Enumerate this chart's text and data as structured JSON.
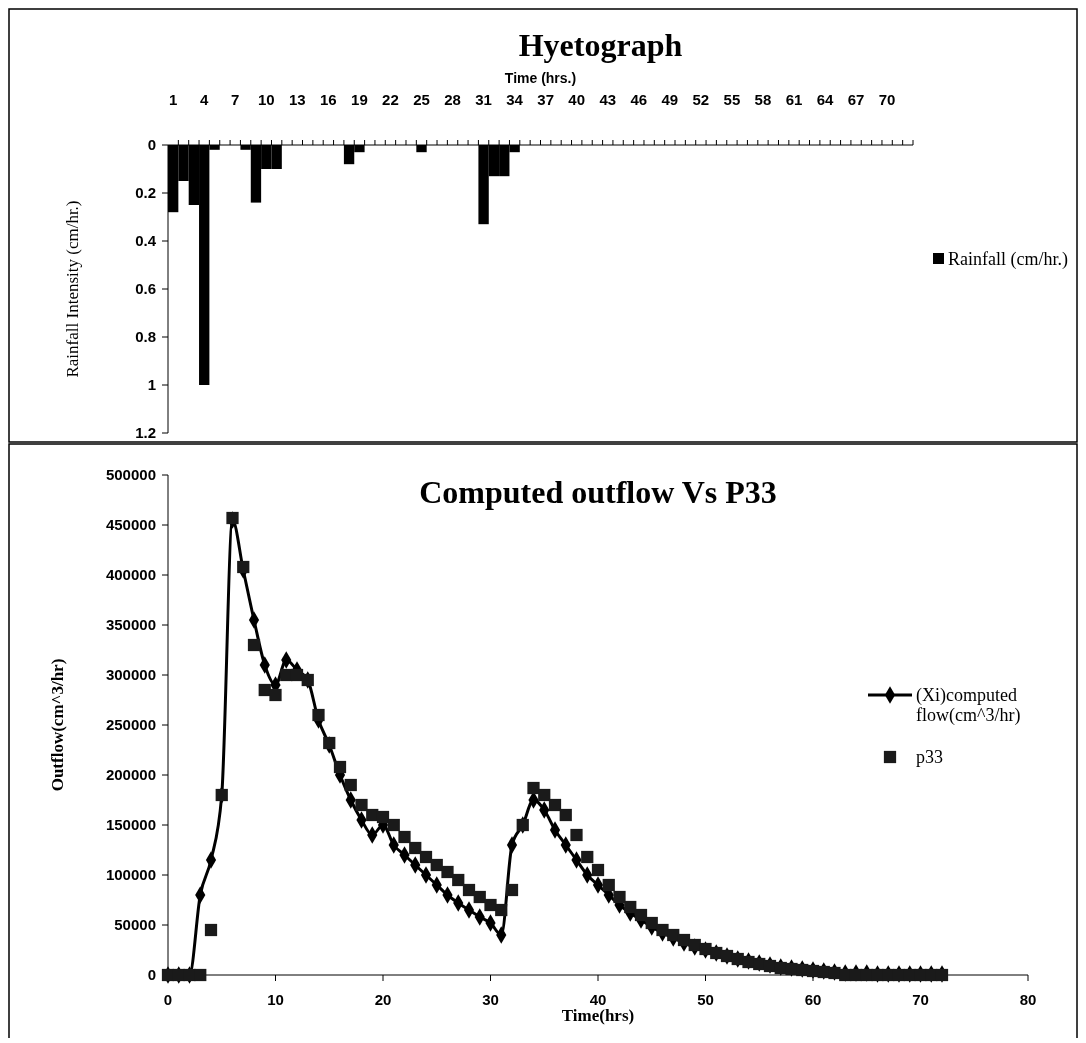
{
  "chart_data": [
    {
      "type": "bar",
      "title": "Hyetograph",
      "xlabel": "Time (hrs.)",
      "ylabel": "Rainfall Intensity (cm/hr.)",
      "categories": [
        "1",
        null,
        null,
        "4",
        null,
        null,
        "7",
        null,
        null,
        "10",
        null,
        null,
        "13",
        null,
        null,
        "16",
        null,
        null,
        "19",
        null,
        null,
        "22",
        null,
        null,
        "25",
        null,
        null,
        "28",
        null,
        null,
        "31",
        null,
        null,
        "34",
        null,
        null,
        "37",
        null,
        null,
        "40",
        null,
        null,
        "43",
        null,
        null,
        "46",
        null,
        null,
        "49",
        null,
        null,
        "52",
        null,
        null,
        "55",
        null,
        null,
        "58",
        null,
        null,
        "61",
        null,
        null,
        "64",
        null,
        null,
        "67",
        null,
        null,
        "70",
        null,
        null
      ],
      "series": [
        {
          "name": "Rainfall (cm/hr.)",
          "color": "#000000",
          "values": [
            0.28,
            0.15,
            0.25,
            1.0,
            0.02,
            0,
            0,
            0.02,
            0.24,
            0.1,
            0.1,
            0,
            0,
            0,
            0,
            0,
            0,
            0.08,
            0.03,
            0,
            0,
            0,
            0,
            0,
            0.03,
            0,
            0,
            0,
            0,
            0,
            0.33,
            0.13,
            0.13,
            0.03,
            0,
            0,
            0,
            0,
            0,
            0,
            0,
            0,
            0,
            0,
            0,
            0,
            0,
            0,
            0,
            0,
            0,
            0,
            0,
            0,
            0,
            0,
            0,
            0,
            0,
            0,
            0,
            0,
            0,
            0,
            0,
            0,
            0,
            0,
            0,
            0,
            0,
            0
          ]
        }
      ],
      "ylim": [
        1.2,
        0
      ],
      "yticks": [
        0,
        0.2,
        0.4,
        0.6,
        0.8,
        1,
        1.2
      ],
      "legend": "right",
      "grid": false
    },
    {
      "type": "line",
      "title": "Computed outflow Vs P33",
      "xlabel": "Time(hrs)",
      "ylabel": "Outflow(cm^3/hr)",
      "xlim": [
        0,
        80
      ],
      "xticks": [
        0,
        10,
        20,
        30,
        40,
        50,
        60,
        70,
        80
      ],
      "ylim": [
        0,
        500000
      ],
      "yticks": [
        0,
        50000,
        100000,
        150000,
        200000,
        250000,
        300000,
        350000,
        400000,
        450000,
        500000
      ],
      "series": [
        {
          "name": "(Xi)computed flow(cm^3/hr)",
          "type": "line",
          "marker": "diamond",
          "color": "#000000",
          "x": [
            0,
            1,
            2,
            3,
            4,
            5,
            6,
            7,
            8,
            9,
            10,
            11,
            12,
            13,
            14,
            15,
            16,
            17,
            18,
            19,
            20,
            21,
            22,
            23,
            24,
            25,
            26,
            27,
            28,
            29,
            30,
            31,
            32,
            33,
            34,
            35,
            36,
            37,
            38,
            39,
            40,
            41,
            42,
            43,
            44,
            45,
            46,
            47,
            48,
            49,
            50,
            51,
            52,
            53,
            54,
            55,
            56,
            57,
            58,
            59,
            60,
            61,
            62,
            63,
            64,
            65,
            66,
            67,
            68,
            69,
            70,
            71,
            72
          ],
          "values": [
            0,
            0,
            0,
            80000,
            115000,
            180000,
            455000,
            405000,
            355000,
            310000,
            290000,
            315000,
            305000,
            295000,
            255000,
            230000,
            200000,
            175000,
            155000,
            140000,
            150000,
            130000,
            120000,
            110000,
            100000,
            90000,
            80000,
            72000,
            65000,
            58000,
            52000,
            40000,
            130000,
            150000,
            175000,
            165000,
            145000,
            130000,
            115000,
            100000,
            90000,
            80000,
            70000,
            62000,
            55000,
            48000,
            42000,
            37000,
            32000,
            28000,
            25000,
            22000,
            19000,
            16000,
            14000,
            12000,
            10000,
            8000,
            7000,
            6000,
            5000,
            4000,
            3000,
            2000,
            2000,
            2000,
            1000,
            1000,
            1000,
            1000,
            1000,
            1000,
            1000
          ]
        },
        {
          "name": "p33",
          "type": "scatter",
          "marker": "square",
          "color": "#1a1a1a",
          "x": [
            0,
            1,
            2,
            3,
            4,
            5,
            6,
            7,
            8,
            9,
            10,
            11,
            12,
            13,
            14,
            15,
            16,
            17,
            18,
            19,
            20,
            21,
            22,
            23,
            24,
            25,
            26,
            27,
            28,
            29,
            30,
            31,
            32,
            33,
            34,
            35,
            36,
            37,
            38,
            39,
            40,
            41,
            42,
            43,
            44,
            45,
            46,
            47,
            48,
            49,
            50,
            51,
            52,
            53,
            54,
            55,
            56,
            57,
            58,
            59,
            60,
            61,
            62,
            63,
            64,
            65,
            66,
            67,
            68,
            69,
            70,
            71,
            72
          ],
          "values": [
            0,
            0,
            0,
            0,
            45000,
            180000,
            457000,
            408000,
            330000,
            285000,
            280000,
            300000,
            300000,
            295000,
            260000,
            232000,
            208000,
            190000,
            170000,
            160000,
            158000,
            150000,
            138000,
            127000,
            118000,
            110000,
            103000,
            95000,
            85000,
            78000,
            70000,
            65000,
            85000,
            150000,
            187000,
            180000,
            170000,
            160000,
            140000,
            118000,
            105000,
            90000,
            78000,
            68000,
            60000,
            52000,
            45000,
            40000,
            35000,
            30000,
            26000,
            22000,
            19000,
            16000,
            13000,
            11000,
            9000,
            7000,
            6000,
            5000,
            4000,
            3000,
            2000,
            0,
            0,
            0,
            0,
            0,
            0,
            0,
            0,
            0,
            0
          ]
        }
      ],
      "legend": "right",
      "grid": false
    }
  ]
}
